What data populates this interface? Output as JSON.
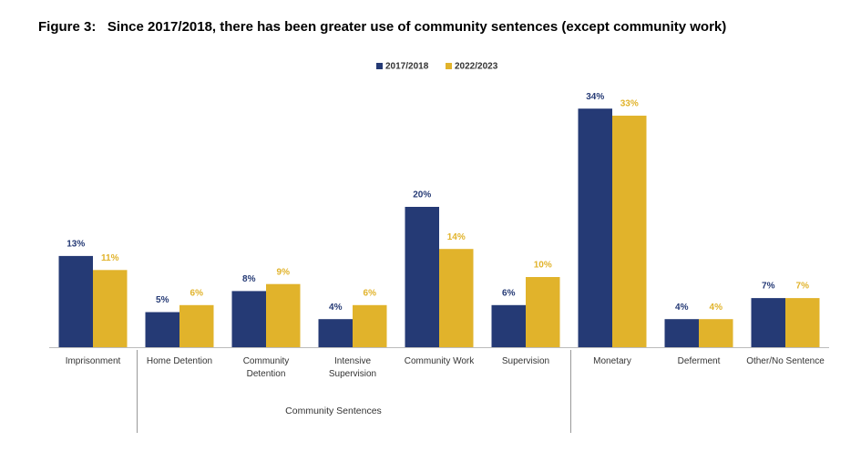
{
  "chart_data": {
    "type": "bar",
    "title": "Figure 3:   Since 2017/2018, there has been greater use of community sentences (except community work)",
    "categories": [
      "Imprisonment",
      "Home Detention",
      "Community Detention",
      "Intensive Supervision",
      "Community Work",
      "Supervision",
      "Monetary",
      "Deferment",
      "Other/No Sentence"
    ],
    "series": [
      {
        "name": "2017/2018",
        "color": "#253a75",
        "values": [
          13,
          5,
          8,
          4,
          20,
          6,
          34,
          4,
          7
        ],
        "value_labels": [
          "13%",
          "5%",
          "8%",
          "4%",
          "20%",
          "6%",
          "34%",
          "4%",
          "7%"
        ]
      },
      {
        "name": "2022/2023",
        "color": "#e1b32b",
        "values": [
          11,
          6,
          9,
          6,
          14,
          10,
          33,
          4,
          7
        ],
        "value_labels": [
          "11%",
          "6%",
          "9%",
          "6%",
          "14%",
          "10%",
          "33%",
          "4%",
          "7%"
        ]
      }
    ],
    "group_label": "Community Sentences",
    "legend": "top"
  }
}
